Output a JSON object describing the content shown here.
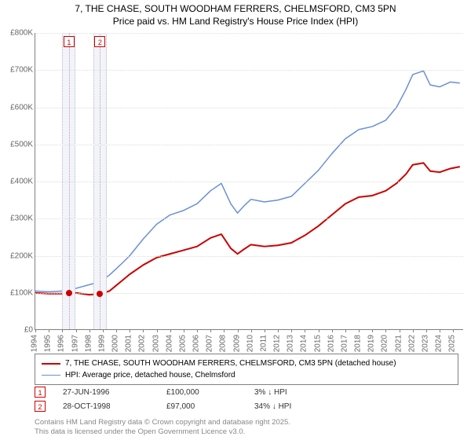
{
  "title": {
    "line1": "7, THE CHASE, SOUTH WOODHAM FERRERS, CHELMSFORD, CM3 5PN",
    "line2": "Price paid vs. HM Land Registry's House Price Index (HPI)",
    "fontsize": 12,
    "color": "#000000"
  },
  "chart": {
    "type": "line",
    "background_color": "#ffffff",
    "grid_color": "#dddddd",
    "axis_color": "#808080",
    "xlim": [
      1994,
      2025.8
    ],
    "ylim": [
      0,
      800000
    ],
    "ytick_step": 100000,
    "yticks": [
      {
        "v": 0,
        "label": "£0"
      },
      {
        "v": 100000,
        "label": "£100K"
      },
      {
        "v": 200000,
        "label": "£200K"
      },
      {
        "v": 300000,
        "label": "£300K"
      },
      {
        "v": 400000,
        "label": "£400K"
      },
      {
        "v": 500000,
        "label": "£500K"
      },
      {
        "v": 600000,
        "label": "£600K"
      },
      {
        "v": 700000,
        "label": "£700K"
      },
      {
        "v": 800000,
        "label": "£800K"
      }
    ],
    "xticks": [
      1994,
      1995,
      1996,
      1997,
      1998,
      1999,
      2000,
      2001,
      2002,
      2003,
      2004,
      2005,
      2006,
      2007,
      2008,
      2009,
      2010,
      2011,
      2012,
      2013,
      2014,
      2015,
      2016,
      2017,
      2018,
      2019,
      2020,
      2021,
      2022,
      2023,
      2024,
      2025
    ],
    "series": [
      {
        "name": "price_paid",
        "label": "7, THE CHASE, SOUTH WOODHAM FERRERS, CHELMSFORD, CM3 5PN (detached house)",
        "color": "#cc0000",
        "line_width": 2,
        "data": [
          [
            1994.0,
            100000
          ],
          [
            1995.0,
            98000
          ],
          [
            1996.0,
            98000
          ],
          [
            1996.5,
            100000
          ],
          [
            1997.0,
            100000
          ],
          [
            1998.0,
            95000
          ],
          [
            1998.8,
            97000
          ],
          [
            1999.5,
            105000
          ],
          [
            2000.0,
            120000
          ],
          [
            2000.5,
            135000
          ],
          [
            2001.0,
            150000
          ],
          [
            2002.0,
            175000
          ],
          [
            2003.0,
            195000
          ],
          [
            2004.0,
            205000
          ],
          [
            2005.0,
            215000
          ],
          [
            2006.0,
            225000
          ],
          [
            2007.0,
            248000
          ],
          [
            2007.8,
            258000
          ],
          [
            2008.5,
            220000
          ],
          [
            2009.0,
            205000
          ],
          [
            2009.5,
            218000
          ],
          [
            2010.0,
            230000
          ],
          [
            2011.0,
            225000
          ],
          [
            2012.0,
            228000
          ],
          [
            2013.0,
            235000
          ],
          [
            2014.0,
            255000
          ],
          [
            2015.0,
            280000
          ],
          [
            2016.0,
            310000
          ],
          [
            2017.0,
            340000
          ],
          [
            2018.0,
            358000
          ],
          [
            2019.0,
            362000
          ],
          [
            2020.0,
            375000
          ],
          [
            2020.8,
            395000
          ],
          [
            2021.5,
            420000
          ],
          [
            2022.0,
            445000
          ],
          [
            2022.8,
            450000
          ],
          [
            2023.3,
            428000
          ],
          [
            2024.0,
            425000
          ],
          [
            2024.8,
            435000
          ],
          [
            2025.5,
            440000
          ]
        ]
      },
      {
        "name": "hpi",
        "label": "HPI: Average price, detached house, Chelmsford",
        "color": "#6a8fd8",
        "line_width": 1.5,
        "data": [
          [
            1994.0,
            105000
          ],
          [
            1995.0,
            103000
          ],
          [
            1996.0,
            105000
          ],
          [
            1997.0,
            112000
          ],
          [
            1998.0,
            122000
          ],
          [
            1998.8,
            130000
          ],
          [
            1999.5,
            148000
          ],
          [
            2000.0,
            165000
          ],
          [
            2000.5,
            182000
          ],
          [
            2001.0,
            200000
          ],
          [
            2002.0,
            245000
          ],
          [
            2003.0,
            285000
          ],
          [
            2004.0,
            310000
          ],
          [
            2005.0,
            322000
          ],
          [
            2006.0,
            340000
          ],
          [
            2007.0,
            375000
          ],
          [
            2007.8,
            395000
          ],
          [
            2008.5,
            340000
          ],
          [
            2009.0,
            315000
          ],
          [
            2009.5,
            335000
          ],
          [
            2010.0,
            352000
          ],
          [
            2011.0,
            345000
          ],
          [
            2012.0,
            350000
          ],
          [
            2013.0,
            360000
          ],
          [
            2014.0,
            395000
          ],
          [
            2015.0,
            430000
          ],
          [
            2016.0,
            475000
          ],
          [
            2017.0,
            515000
          ],
          [
            2018.0,
            540000
          ],
          [
            2019.0,
            548000
          ],
          [
            2020.0,
            565000
          ],
          [
            2020.8,
            600000
          ],
          [
            2021.5,
            648000
          ],
          [
            2022.0,
            688000
          ],
          [
            2022.8,
            698000
          ],
          [
            2023.3,
            660000
          ],
          [
            2024.0,
            655000
          ],
          [
            2024.8,
            668000
          ],
          [
            2025.5,
            665000
          ]
        ]
      }
    ],
    "highlight_bands": [
      {
        "from": 1996.0,
        "to": 1997.0,
        "color": "#f2f4fb"
      },
      {
        "from": 1998.3,
        "to": 1999.3,
        "color": "#f2f4fb"
      }
    ],
    "highlight_lines": [
      {
        "x": 1996.5,
        "color": "#c99"
      },
      {
        "x": 1998.8,
        "color": "#c99"
      }
    ],
    "sale_markers": [
      {
        "x": 1996.5,
        "y": 100000,
        "color": "#cc0000"
      },
      {
        "x": 1998.8,
        "y": 97000,
        "color": "#cc0000"
      }
    ],
    "flags": [
      {
        "x": 1996.5,
        "label": "1",
        "border": "#cc0000",
        "text_color": "#cc0000"
      },
      {
        "x": 1998.8,
        "label": "2",
        "border": "#cc0000",
        "text_color": "#cc0000"
      }
    ]
  },
  "legend": {
    "border_color": "#808080",
    "fontsize": 10
  },
  "sales": [
    {
      "flag": "1",
      "flag_color": "#cc0000",
      "date": "27-JUN-1996",
      "price": "£100,000",
      "diff": "3% ↓ HPI"
    },
    {
      "flag": "2",
      "flag_color": "#cc0000",
      "date": "28-OCT-1998",
      "price": "£97,000",
      "diff": "34% ↓ HPI"
    }
  ],
  "footer": {
    "line1": "Contains HM Land Registry data © Crown copyright and database right 2025.",
    "line2": "This data is licensed under the Open Government Licence v3.0.",
    "color": "#888888"
  }
}
